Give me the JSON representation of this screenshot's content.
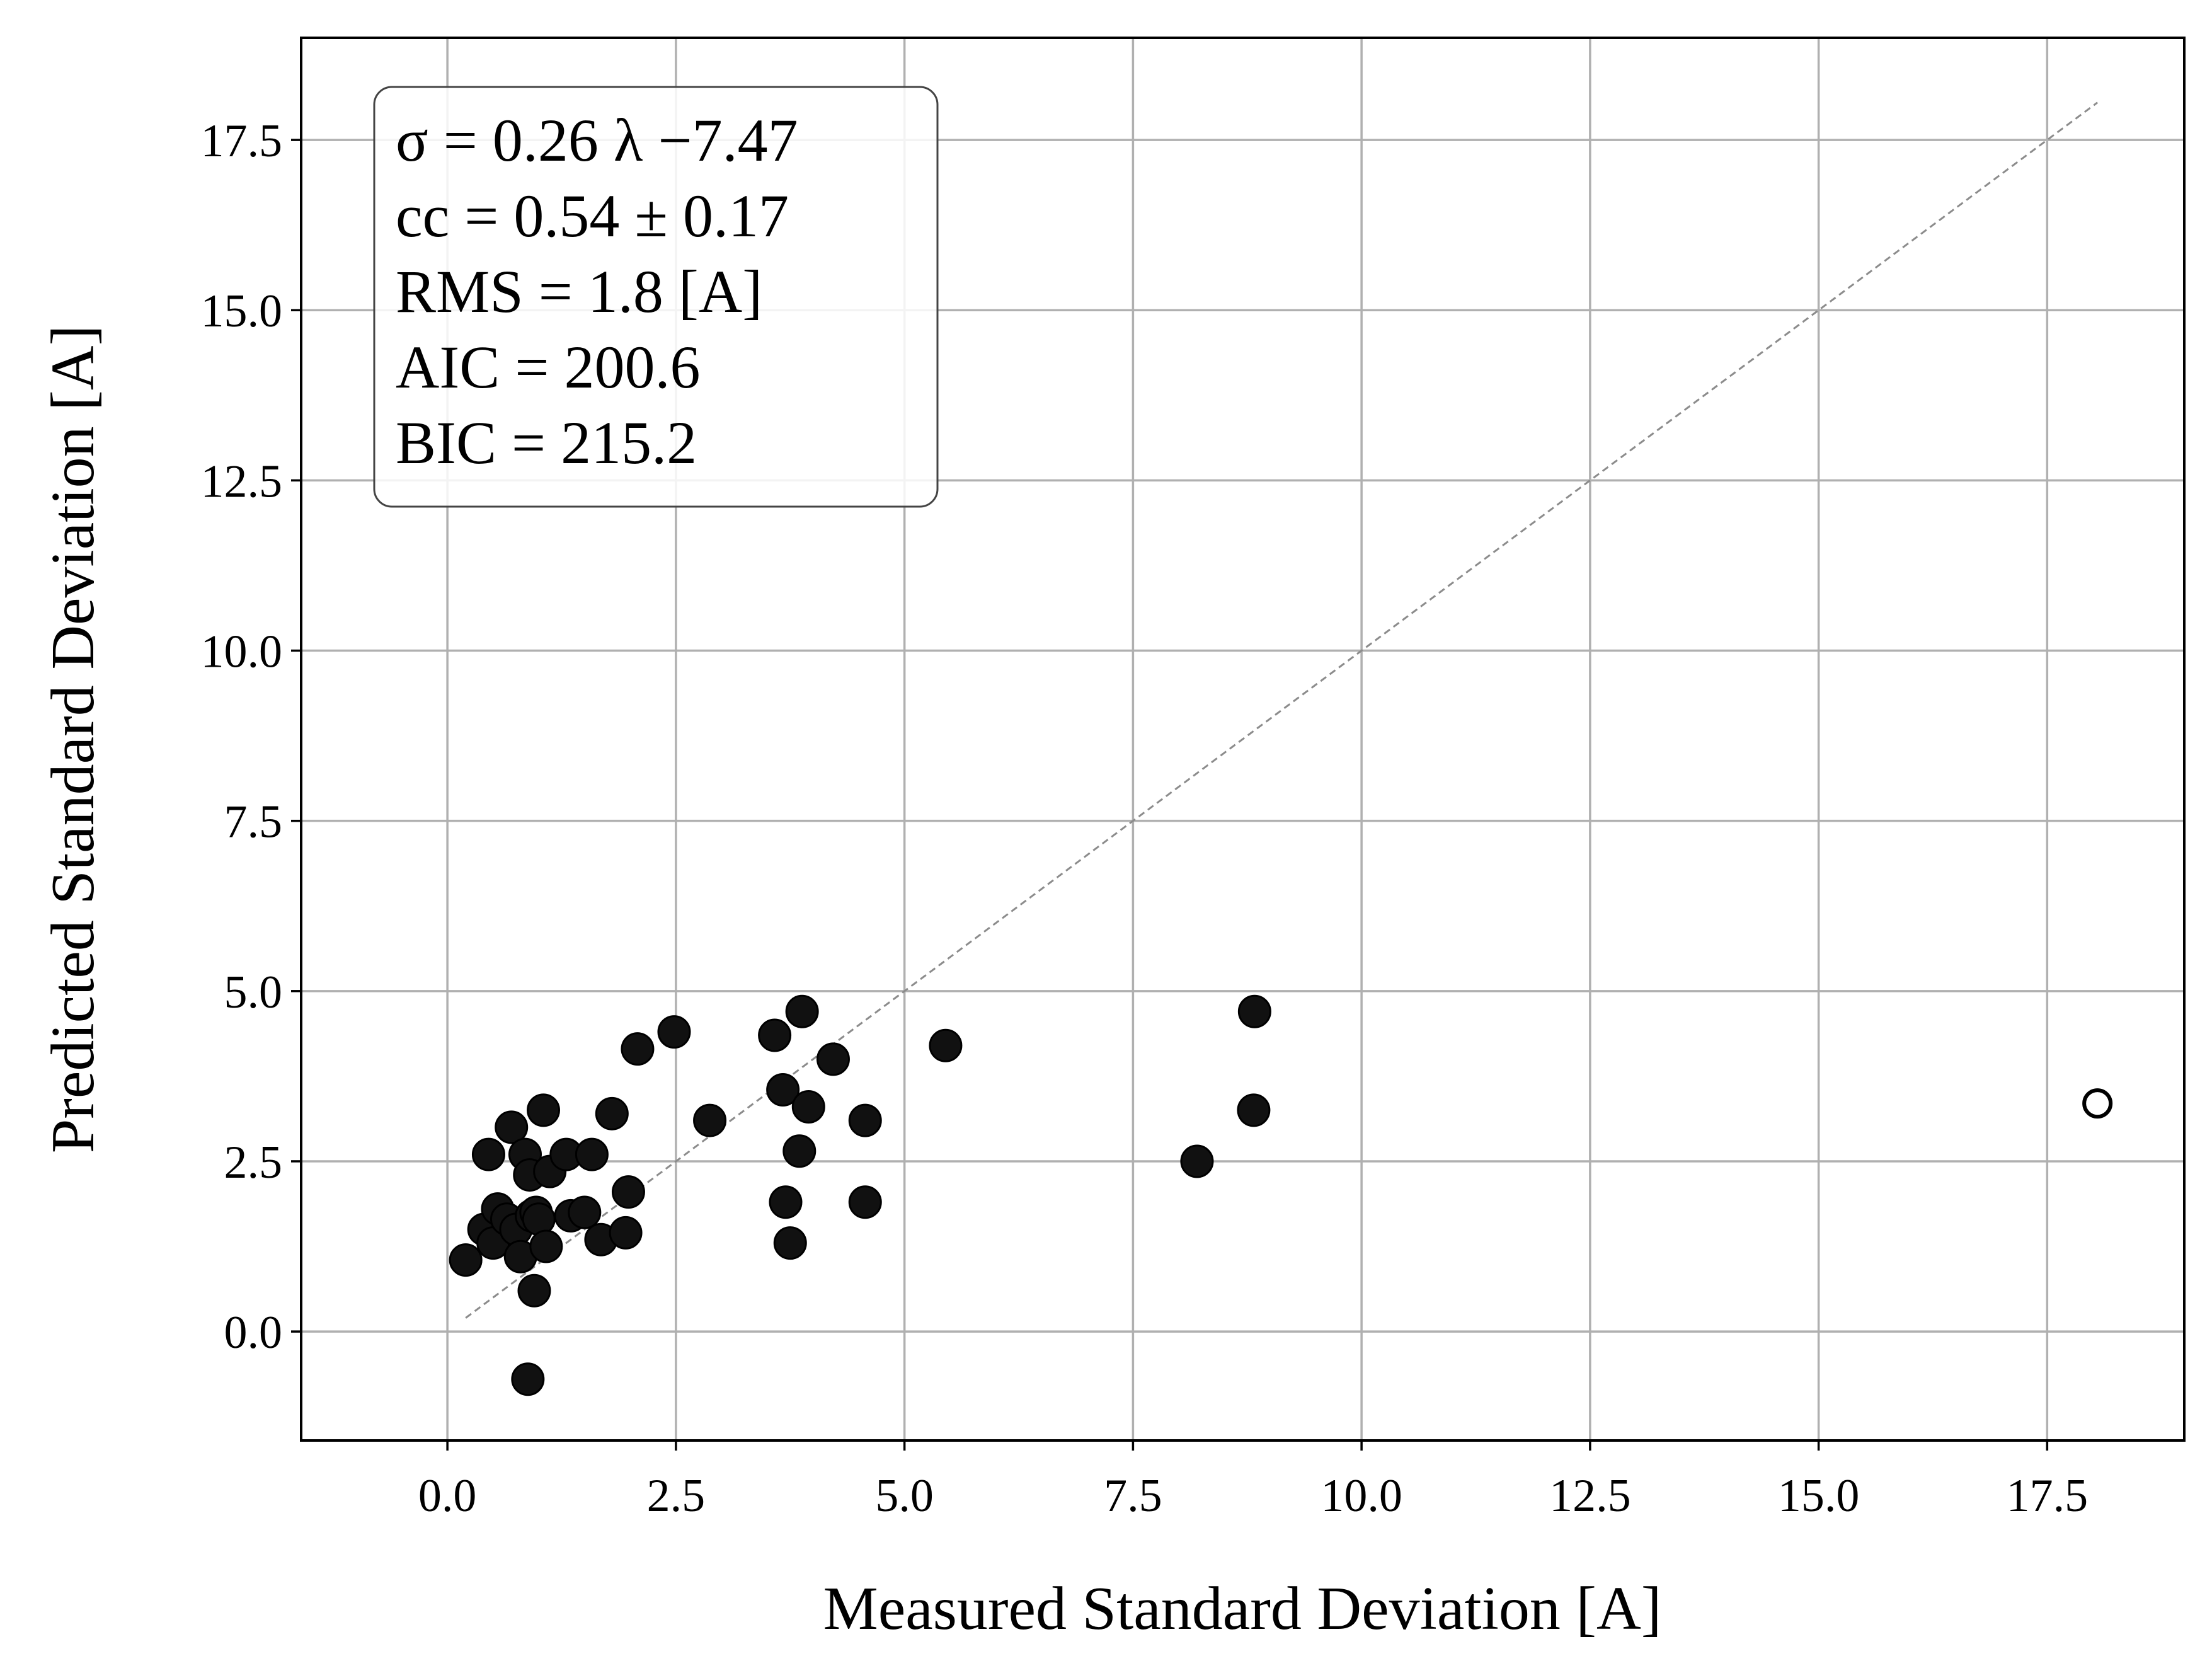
{
  "chart_data": {
    "type": "scatter",
    "title": "",
    "xlabel": "Measured Standard Deviation [A]",
    "ylabel": "Predicted Standard Deviation [A]",
    "xlim": [
      -1.6,
      19.0
    ],
    "ylim": [
      -1.6,
      19.0
    ],
    "xticks": [
      0.0,
      2.5,
      5.0,
      7.5,
      10.0,
      12.5,
      15.0,
      17.5
    ],
    "xtick_labels": [
      "0.0",
      "2.5",
      "5.0",
      "7.5",
      "10.0",
      "12.5",
      "15.0",
      "17.5"
    ],
    "yticks": [
      0.0,
      2.5,
      5.0,
      7.5,
      10.0,
      12.5,
      15.0,
      17.5
    ],
    "ytick_labels": [
      "0.0",
      "2.5",
      "5.0",
      "7.5",
      "10.0",
      "12.5",
      "15.0",
      "17.5"
    ],
    "grid": true,
    "legend": "none",
    "marker_color": "#111111",
    "grid_color": "#b0b0b0",
    "reference_line": {
      "style": "dashed",
      "color": "#8c8c8c",
      "x": [
        0.2,
        18.05
      ],
      "y": [
        0.2,
        18.05
      ]
    },
    "annotation": {
      "position": "top-left",
      "lines": [
        "σ = 0.26 λ −7.47",
        "cc = 0.54 ± 0.17",
        "RMS = 1.8 [A]",
        "AIC = 200.6",
        "BIC = 215.2"
      ]
    },
    "series": [
      {
        "marker": "filled-circle",
        "points": [
          {
            "x": 0.2,
            "y": 1.05
          },
          {
            "x": 0.4,
            "y": 1.5
          },
          {
            "x": 0.45,
            "y": 2.6
          },
          {
            "x": 0.5,
            "y": 1.3
          },
          {
            "x": 0.55,
            "y": 1.8
          },
          {
            "x": 0.65,
            "y": 1.65
          },
          {
            "x": 0.7,
            "y": 3.0
          },
          {
            "x": 0.75,
            "y": 1.5
          },
          {
            "x": 0.8,
            "y": 1.1
          },
          {
            "x": 0.85,
            "y": 2.6
          },
          {
            "x": 0.88,
            "y": -0.7
          },
          {
            "x": 0.9,
            "y": 2.3
          },
          {
            "x": 0.92,
            "y": 1.7
          },
          {
            "x": 0.95,
            "y": 0.6
          },
          {
            "x": 0.97,
            "y": 1.75
          },
          {
            "x": 1.0,
            "y": 1.65
          },
          {
            "x": 1.05,
            "y": 3.25
          },
          {
            "x": 1.08,
            "y": 1.25
          },
          {
            "x": 1.12,
            "y": 2.35
          },
          {
            "x": 1.3,
            "y": 2.6
          },
          {
            "x": 1.35,
            "y": 1.7
          },
          {
            "x": 1.5,
            "y": 1.75
          },
          {
            "x": 1.58,
            "y": 2.6
          },
          {
            "x": 1.68,
            "y": 1.35
          },
          {
            "x": 1.8,
            "y": 3.2
          },
          {
            "x": 1.95,
            "y": 1.45
          },
          {
            "x": 1.98,
            "y": 2.05
          },
          {
            "x": 2.08,
            "y": 4.15
          },
          {
            "x": 2.48,
            "y": 4.4
          },
          {
            "x": 2.87,
            "y": 3.1
          },
          {
            "x": 3.58,
            "y": 4.35
          },
          {
            "x": 3.67,
            "y": 3.55
          },
          {
            "x": 3.7,
            "y": 1.9
          },
          {
            "x": 3.75,
            "y": 1.3
          },
          {
            "x": 3.85,
            "y": 2.65
          },
          {
            "x": 3.88,
            "y": 4.7
          },
          {
            "x": 3.95,
            "y": 3.3
          },
          {
            "x": 4.22,
            "y": 4.0
          },
          {
            "x": 4.57,
            "y": 3.1
          },
          {
            "x": 4.57,
            "y": 1.9
          },
          {
            "x": 5.45,
            "y": 4.2
          },
          {
            "x": 8.2,
            "y": 2.5
          },
          {
            "x": 8.82,
            "y": 3.25
          },
          {
            "x": 8.83,
            "y": 4.7
          }
        ]
      },
      {
        "marker": "open-circle",
        "points": [
          {
            "x": 18.05,
            "y": 3.35
          }
        ]
      }
    ]
  }
}
